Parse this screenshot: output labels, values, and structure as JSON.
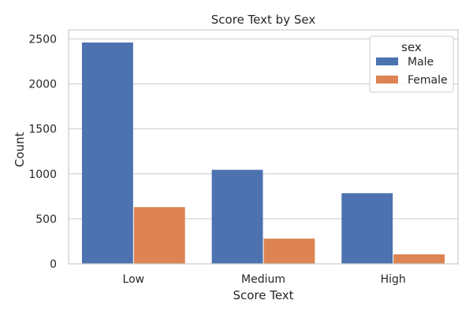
{
  "chart_data": {
    "type": "bar",
    "title": "Score Text by Sex",
    "xlabel": "Score Text",
    "ylabel": "Count",
    "categories": [
      "Low",
      "Medium",
      "High"
    ],
    "series": [
      {
        "name": "Male",
        "values": [
          2460,
          1045,
          785
        ],
        "color": "#4c72b0"
      },
      {
        "name": "Female",
        "values": [
          630,
          280,
          105
        ],
        "color": "#dd8452"
      }
    ],
    "ylim": [
      0,
      2600
    ],
    "yticks": [
      0,
      500,
      1000,
      1500,
      2000,
      2500
    ],
    "grid": true,
    "legend": {
      "title": "sex",
      "position": "top-right"
    }
  }
}
